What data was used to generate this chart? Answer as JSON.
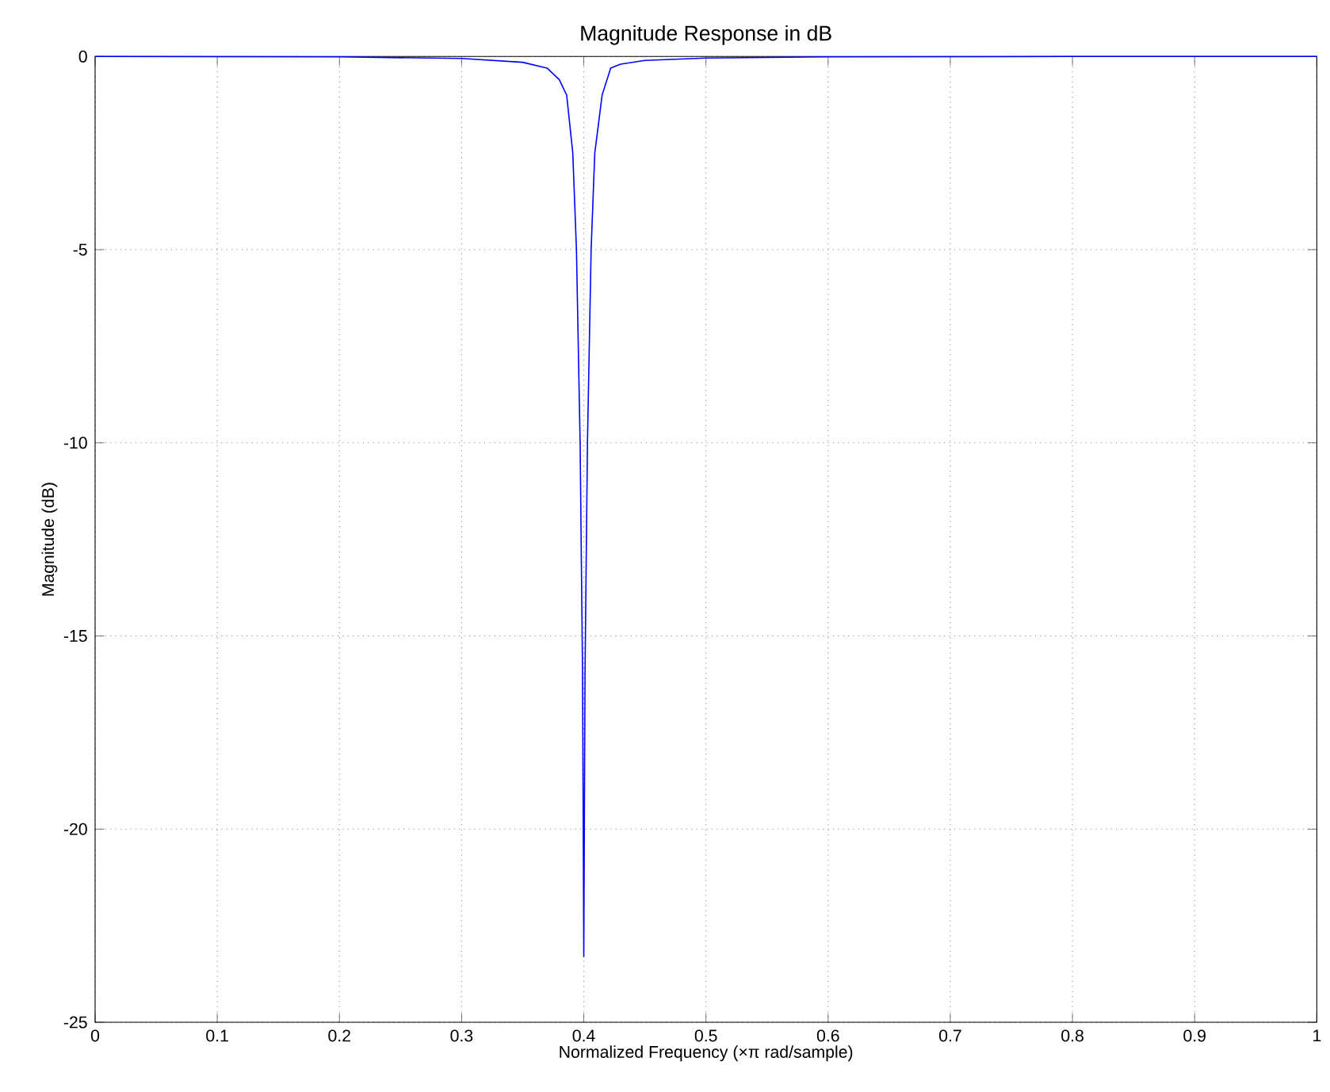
{
  "chart_data": {
    "type": "line",
    "title": "Magnitude Response in dB",
    "xlabel": "Normalized Frequency  (×π rad/sample)",
    "ylabel": "Magnitude (dB)",
    "series": [
      {
        "color": "#0000ff",
        "x": [
          0,
          0.2,
          0.3,
          0.35,
          0.37,
          0.38,
          0.386,
          0.391,
          0.394,
          0.397,
          0.399,
          0.4,
          0.401,
          0.403,
          0.406,
          0.409,
          0.415,
          0.422,
          0.43,
          0.45,
          0.5,
          0.6,
          0.8,
          1
        ],
        "values": [
          0,
          -0.01,
          -0.05,
          -0.15,
          -0.3,
          -0.6,
          -1,
          -2.5,
          -5,
          -10,
          -16,
          -23.3,
          -16,
          -10,
          -5,
          -2.5,
          -1,
          -0.3,
          -0.2,
          -0.1,
          -0.04,
          -0.01,
          0,
          0
        ]
      }
    ],
    "xlim": [
      0,
      1
    ],
    "ylim": [
      -25,
      0
    ],
    "xticks": [
      0,
      0.1,
      0.2,
      0.3,
      0.4,
      0.5,
      0.6,
      0.7,
      0.8,
      0.9,
      1
    ],
    "yticks": [
      -25,
      -20,
      -15,
      -10,
      -5,
      0
    ],
    "grid": true,
    "marker": "none",
    "line_style": "solid"
  }
}
